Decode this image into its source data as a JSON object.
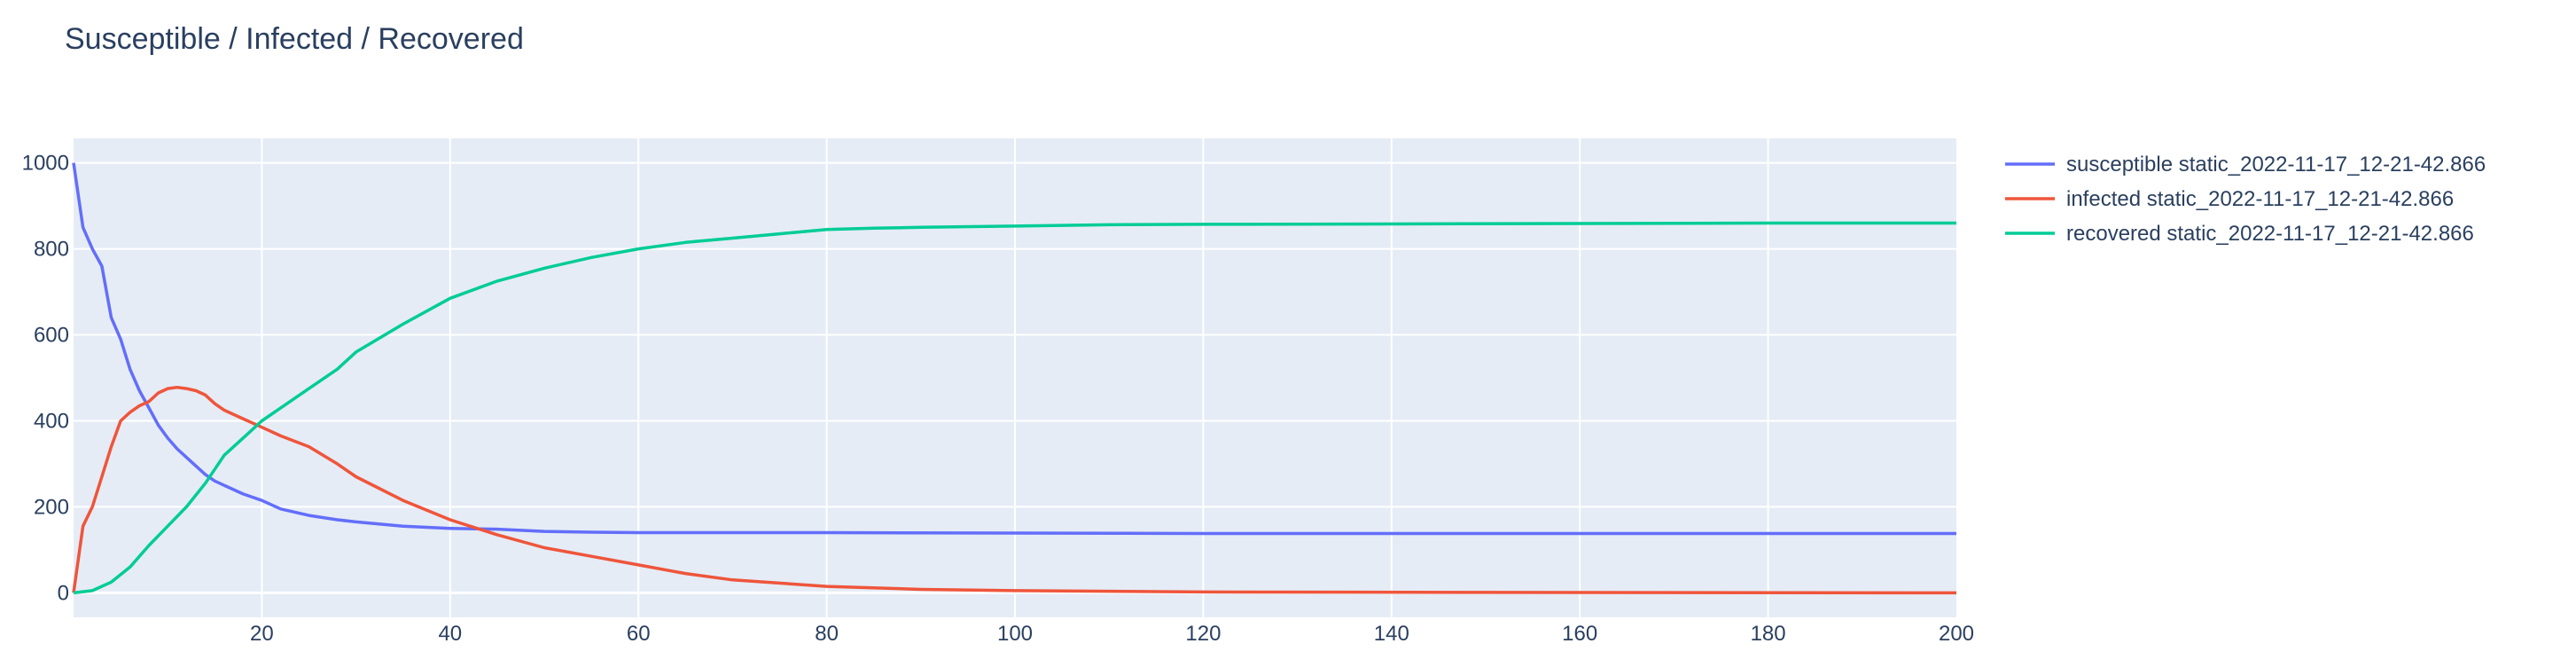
{
  "chart_data": {
    "type": "line",
    "title": "Susceptible / Infected / Recovered",
    "xlabel": "",
    "ylabel": "",
    "xlim": [
      0,
      200
    ],
    "ylim": [
      -57,
      1057
    ],
    "x_ticks": [
      20,
      40,
      60,
      80,
      100,
      120,
      140,
      160,
      180,
      200
    ],
    "y_ticks": [
      0,
      200,
      400,
      600,
      800,
      1000
    ],
    "grid": true,
    "legend_position": "right",
    "plot_bg": "#e5ecf6",
    "series": [
      {
        "name": "susceptible static_2022-11-17_12-21-42.866",
        "color": "#636efa",
        "x": [
          0,
          1,
          2,
          3,
          4,
          5,
          6,
          7,
          8,
          9,
          10,
          11,
          12,
          13,
          14,
          15,
          16,
          18,
          20,
          22,
          25,
          28,
          30,
          35,
          40,
          45,
          50,
          55,
          60,
          80,
          100,
          120,
          150,
          180,
          200
        ],
        "y": [
          1000,
          850,
          800,
          760,
          640,
          590,
          520,
          470,
          430,
          390,
          360,
          335,
          315,
          295,
          275,
          260,
          250,
          230,
          215,
          195,
          180,
          170,
          165,
          155,
          150,
          148,
          143,
          141,
          140,
          140,
          139,
          138,
          138,
          138,
          138
        ]
      },
      {
        "name": "infected static_2022-11-17_12-21-42.866",
        "color": "#ef553b",
        "x": [
          0,
          1,
          2,
          3,
          4,
          5,
          6,
          7,
          8,
          9,
          10,
          11,
          12,
          13,
          14,
          15,
          16,
          18,
          20,
          22,
          25,
          28,
          30,
          35,
          40,
          45,
          50,
          55,
          60,
          65,
          70,
          80,
          90,
          100,
          120,
          150,
          200
        ],
        "y": [
          0,
          155,
          200,
          270,
          340,
          400,
          420,
          435,
          445,
          465,
          475,
          478,
          475,
          470,
          460,
          440,
          425,
          405,
          385,
          365,
          340,
          300,
          270,
          215,
          170,
          135,
          105,
          85,
          65,
          45,
          30,
          15,
          8,
          5,
          2,
          1,
          0
        ]
      },
      {
        "name": "recovered static_2022-11-17_12-21-42.866",
        "color": "#00cc96",
        "x": [
          0,
          2,
          4,
          6,
          8,
          10,
          12,
          14,
          16,
          18,
          20,
          22,
          25,
          28,
          30,
          35,
          40,
          45,
          50,
          55,
          60,
          65,
          70,
          75,
          80,
          85,
          90,
          100,
          110,
          120,
          140,
          160,
          180,
          200
        ],
        "y": [
          0,
          5,
          25,
          60,
          110,
          155,
          200,
          255,
          320,
          360,
          400,
          430,
          475,
          520,
          560,
          625,
          685,
          725,
          755,
          780,
          800,
          815,
          825,
          835,
          845,
          848,
          850,
          853,
          856,
          857,
          858,
          859,
          860,
          860
        ]
      }
    ]
  }
}
